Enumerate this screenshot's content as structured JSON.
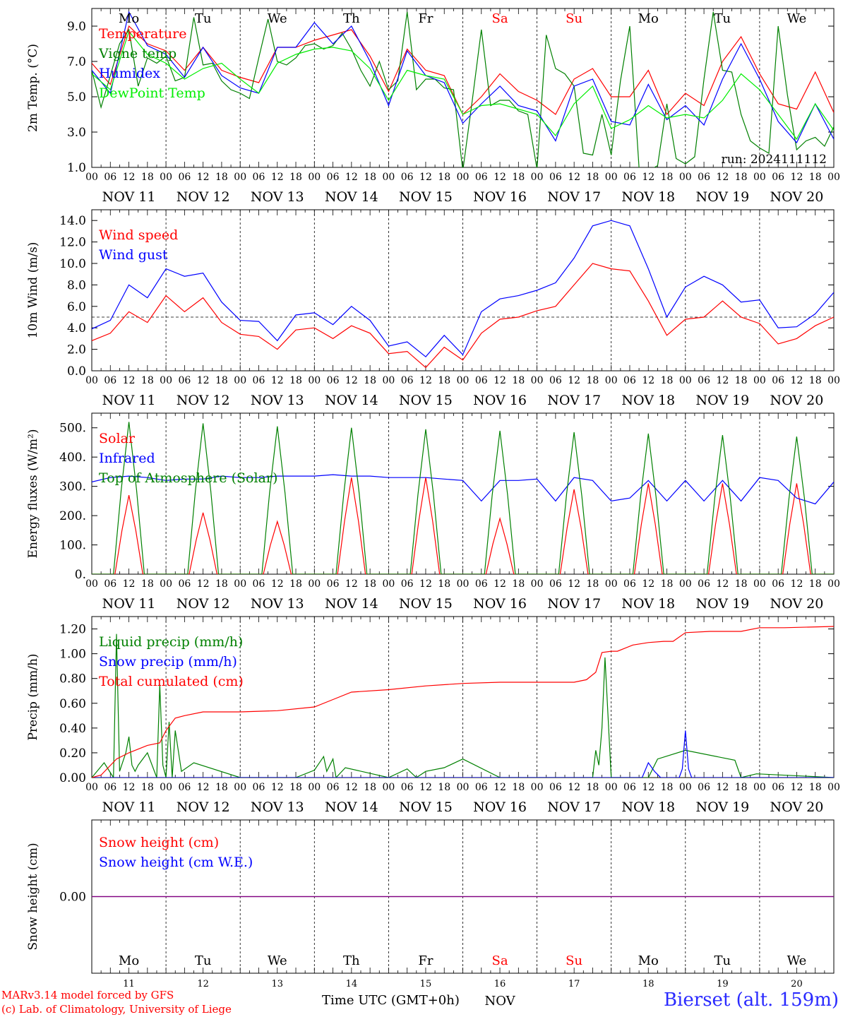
{
  "common": {
    "days": [
      "Mo",
      "Tu",
      "We",
      "Th",
      "Fr",
      "Sa",
      "Su",
      "Mo",
      "Tu",
      "We"
    ],
    "weekend": [
      false,
      false,
      false,
      false,
      false,
      true,
      true,
      false,
      false,
      false
    ],
    "date_labels": [
      "NOV 11",
      "NOV 12",
      "NOV 13",
      "NOV 14",
      "NOV 15",
      "NOV 16",
      "NOV 17",
      "NOV 18",
      "NOV 19",
      "NOV 20"
    ],
    "hour_labels": [
      "00",
      "06",
      "12",
      "18"
    ],
    "last_hour_label": "00",
    "bottom_day_numbers": [
      "11",
      "12",
      "13",
      "14",
      "15",
      "16",
      "17",
      "18",
      "19",
      "20"
    ],
    "bottom_month": "NOV",
    "hours_span": 240
  },
  "footer": {
    "model_line": "MARv3.14 model forced by GFS",
    "lab_line": "(c) Lab. of Climatology, University of Liege",
    "time_axis_label": "Time UTC (GMT+0h)",
    "station_label": "Bierset (alt. 159m)"
  },
  "colors": {
    "red": "#ff0000",
    "green": "#008000",
    "blue": "#0000ff",
    "lightgreen": "#00ee00",
    "purple": "#800080"
  },
  "chart_data": [
    {
      "type": "line",
      "ylabel": "2m Temp. (°C)",
      "ylim": [
        1.0,
        10.0
      ],
      "yticks": [
        1.0,
        3.0,
        5.0,
        7.0,
        9.0
      ],
      "tick_decimals": 1,
      "annotation": "run: 2024111112",
      "show_days": true,
      "grid": "dashed day separators",
      "legend_position": "left",
      "series": [
        {
          "name": "Temperature",
          "color": "red",
          "x": [
            0,
            6,
            12,
            18,
            24,
            30,
            36,
            42,
            48,
            54,
            60,
            66,
            72,
            78,
            84,
            90,
            96,
            102,
            108,
            114,
            120,
            126,
            132,
            138,
            144,
            150,
            156,
            162,
            168,
            174,
            180,
            186,
            192,
            198,
            204,
            210,
            216,
            222,
            228,
            234,
            240
          ],
          "y": [
            6.9,
            5.7,
            9.0,
            8.0,
            7.6,
            6.5,
            7.8,
            6.5,
            6.1,
            5.8,
            7.8,
            7.8,
            8.2,
            8.5,
            8.8,
            7.3,
            5.3,
            7.7,
            6.5,
            6.2,
            4.0,
            5.0,
            6.3,
            5.3,
            4.8,
            4.0,
            6.0,
            6.6,
            5.0,
            5.0,
            6.5,
            4.0,
            5.2,
            4.5,
            7.0,
            8.4,
            6.3,
            4.6,
            4.3,
            6.4,
            4.1
          ]
        },
        {
          "name": "Vigne temp",
          "color": "green",
          "x": [
            0,
            3,
            6,
            9,
            12,
            15,
            18,
            21,
            24,
            27,
            30,
            33,
            36,
            39,
            42,
            45,
            48,
            51,
            54,
            57,
            60,
            63,
            66,
            69,
            72,
            75,
            78,
            81,
            84,
            87,
            90,
            93,
            96,
            99,
            102,
            105,
            108,
            111,
            114,
            117,
            120,
            123,
            126,
            129,
            132,
            135,
            138,
            141,
            144,
            147,
            150,
            153,
            156,
            159,
            162,
            165,
            168,
            171,
            174,
            177,
            180,
            183,
            186,
            189,
            192,
            195,
            198,
            201,
            204,
            207,
            210,
            213,
            216,
            219,
            222,
            225,
            228,
            231,
            234,
            237,
            240
          ],
          "y": [
            6.5,
            4.4,
            6.2,
            8.0,
            8.8,
            5.6,
            7.2,
            6.9,
            7.3,
            5.9,
            6.1,
            9.5,
            6.8,
            6.9,
            5.9,
            5.4,
            5.2,
            4.9,
            7.2,
            9.4,
            7.0,
            6.8,
            7.2,
            7.9,
            8.0,
            7.7,
            7.9,
            8.6,
            7.7,
            6.5,
            5.6,
            7.0,
            5.4,
            5.9,
            9.8,
            5.4,
            6.0,
            6.0,
            5.5,
            5.4,
            0.8,
            4.7,
            8.8,
            4.5,
            4.8,
            4.8,
            4.2,
            4.0,
            0.9,
            8.5,
            6.6,
            6.3,
            5.6,
            1.8,
            1.7,
            4.0,
            1.7,
            5.9,
            9.0,
            1.0,
            0.8,
            1.1,
            4.6,
            1.5,
            1.2,
            1.6,
            6.0,
            9.8,
            6.5,
            6.4,
            4.0,
            2.5,
            2.1,
            1.8,
            9.0,
            5.1,
            2.0,
            2.5,
            2.7,
            2.2,
            3.3
          ]
        },
        {
          "name": "Humidex",
          "color": "blue",
          "x": [
            0,
            6,
            12,
            18,
            24,
            30,
            36,
            42,
            48,
            54,
            60,
            66,
            72,
            78,
            84,
            90,
            96,
            102,
            108,
            114,
            120,
            126,
            132,
            138,
            144,
            150,
            156,
            162,
            168,
            174,
            180,
            186,
            192,
            198,
            204,
            210,
            216,
            222,
            228,
            234,
            240
          ],
          "y": [
            6.5,
            5.2,
            9.8,
            7.9,
            7.4,
            6.1,
            7.8,
            6.2,
            5.5,
            5.2,
            7.8,
            7.8,
            9.2,
            8.0,
            9.0,
            7.0,
            4.5,
            7.6,
            6.2,
            5.8,
            3.5,
            4.6,
            5.6,
            4.5,
            4.2,
            2.5,
            5.6,
            6.0,
            3.6,
            3.4,
            5.7,
            3.7,
            4.5,
            3.4,
            6.0,
            8.0,
            6.0,
            3.6,
            2.4,
            4.6,
            2.6
          ]
        },
        {
          "name": "DewPoint Temp",
          "color": "lightgreen",
          "x": [
            0,
            6,
            12,
            18,
            24,
            30,
            36,
            42,
            48,
            54,
            60,
            66,
            72,
            78,
            84,
            90,
            96,
            102,
            108,
            114,
            120,
            126,
            132,
            138,
            144,
            150,
            156,
            162,
            168,
            174,
            180,
            186,
            192,
            198,
            204,
            210,
            216,
            222,
            228,
            234,
            240
          ],
          "y": [
            6.3,
            5.4,
            8.7,
            7.4,
            6.9,
            6.0,
            6.6,
            6.9,
            6.0,
            5.2,
            6.9,
            7.4,
            7.7,
            7.8,
            7.6,
            6.6,
            4.8,
            6.5,
            6.2,
            6.0,
            4.0,
            4.5,
            4.6,
            4.3,
            4.0,
            2.8,
            4.6,
            5.6,
            3.2,
            3.7,
            4.5,
            3.8,
            4.0,
            3.8,
            4.8,
            6.3,
            5.4,
            4.0,
            2.6,
            4.6,
            3.1
          ]
        }
      ]
    },
    {
      "type": "line",
      "ylabel": "10m Wind (m/s)",
      "ylim": [
        0.0,
        15.0
      ],
      "yticks": [
        0.0,
        2.0,
        4.0,
        6.0,
        8.0,
        10.0,
        12.0,
        14.0
      ],
      "tick_decimals": 1,
      "reference_line": 5.0,
      "show_days": false,
      "legend_position": "left",
      "series": [
        {
          "name": "Wind speed",
          "color": "red",
          "x": [
            0,
            6,
            12,
            18,
            24,
            30,
            36,
            42,
            48,
            54,
            60,
            66,
            72,
            78,
            84,
            90,
            96,
            102,
            108,
            114,
            120,
            126,
            132,
            138,
            144,
            150,
            156,
            162,
            168,
            174,
            180,
            186,
            192,
            198,
            204,
            210,
            216,
            222,
            228,
            234,
            240
          ],
          "y": [
            2.8,
            3.5,
            5.5,
            4.5,
            7.0,
            5.5,
            6.8,
            4.5,
            3.4,
            3.2,
            2.0,
            3.8,
            4.0,
            3.0,
            4.2,
            3.5,
            1.6,
            1.8,
            0.3,
            2.2,
            1.0,
            3.5,
            4.8,
            5.0,
            5.6,
            6.0,
            8.0,
            10.0,
            9.5,
            9.3,
            6.5,
            3.3,
            4.8,
            5.0,
            6.5,
            5.0,
            4.4,
            2.5,
            3.0,
            4.2,
            5.0
          ]
        },
        {
          "name": "Wind gust",
          "color": "blue",
          "x": [
            0,
            6,
            12,
            18,
            24,
            30,
            36,
            42,
            48,
            54,
            60,
            66,
            72,
            78,
            84,
            90,
            96,
            102,
            108,
            114,
            120,
            126,
            132,
            138,
            144,
            150,
            156,
            162,
            168,
            174,
            180,
            186,
            192,
            198,
            204,
            210,
            216,
            222,
            228,
            234,
            240
          ],
          "y": [
            3.9,
            4.7,
            8.0,
            6.8,
            9.5,
            8.8,
            9.1,
            6.4,
            4.7,
            4.6,
            2.8,
            5.2,
            5.4,
            4.3,
            6.0,
            4.7,
            2.3,
            2.7,
            1.3,
            3.3,
            1.5,
            5.5,
            6.7,
            7.0,
            7.5,
            8.2,
            10.5,
            13.5,
            14.0,
            13.5,
            9.5,
            5.0,
            7.8,
            8.8,
            8.0,
            6.4,
            6.6,
            4.0,
            4.1,
            5.3,
            7.3
          ]
        }
      ]
    },
    {
      "type": "line",
      "ylabel": "Energy fluxes (W/m²)",
      "ylim": [
        0,
        550
      ],
      "yticks": [
        0,
        100,
        200,
        300,
        400,
        500
      ],
      "tick_decimals": 0,
      "show_days": false,
      "legend_position": "left",
      "series": [
        {
          "name": "Solar",
          "color": "red",
          "kind": "daily_peaks",
          "peaks": [
            270,
            210,
            180,
            330,
            330,
            190,
            290,
            310,
            310,
            310
          ],
          "half_width": 4.5
        },
        {
          "name": "Infrared",
          "color": "blue",
          "x": [
            0,
            6,
            12,
            18,
            24,
            30,
            36,
            42,
            48,
            54,
            60,
            66,
            72,
            78,
            84,
            90,
            96,
            102,
            108,
            114,
            120,
            126,
            132,
            138,
            144,
            150,
            156,
            162,
            168,
            174,
            180,
            186,
            192,
            198,
            204,
            210,
            216,
            222,
            228,
            234,
            240
          ],
          "y": [
            315,
            330,
            335,
            330,
            320,
            325,
            325,
            335,
            330,
            330,
            335,
            335,
            335,
            340,
            335,
            335,
            330,
            330,
            330,
            325,
            320,
            250,
            320,
            320,
            325,
            250,
            330,
            320,
            250,
            260,
            320,
            250,
            320,
            250,
            320,
            250,
            330,
            320,
            260,
            240,
            315
          ]
        },
        {
          "name": "Top of Atmosphere (Solar)",
          "color": "green",
          "kind": "daily_peaks",
          "peaks": [
            520,
            515,
            505,
            500,
            495,
            490,
            485,
            480,
            475,
            470
          ],
          "half_width": 5.0
        }
      ]
    },
    {
      "type": "line",
      "ylabel": "Precip (mm/h)",
      "ylim": [
        0.0,
        1.3
      ],
      "yticks": [
        0.0,
        0.2,
        0.4,
        0.6,
        0.8,
        1.0,
        1.2
      ],
      "tick_decimals": 2,
      "show_days": false,
      "legend_position": "left",
      "series": [
        {
          "name": "Liquid precip (mm/h)",
          "color": "green",
          "x": [
            0,
            4,
            7,
            8,
            9,
            11,
            12,
            13,
            14,
            15,
            18,
            21,
            22,
            23,
            24,
            25,
            26,
            27,
            29,
            33,
            48,
            66,
            72,
            75,
            76,
            78,
            79,
            82,
            96,
            102,
            105,
            108,
            114,
            120,
            132,
            162,
            163,
            164,
            165,
            166,
            168,
            180,
            183,
            192,
            208,
            210,
            215,
            240
          ],
          "y": [
            0.0,
            0.12,
            0.0,
            1.16,
            0.05,
            0.2,
            0.33,
            0.1,
            0.05,
            0.1,
            0.2,
            0.0,
            0.75,
            0.1,
            0.0,
            0.45,
            0.0,
            0.38,
            0.05,
            0.12,
            0.0,
            0.0,
            0.06,
            0.17,
            0.05,
            0.15,
            0.0,
            0.08,
            0.0,
            0.07,
            0.0,
            0.05,
            0.08,
            0.15,
            0.0,
            0.0,
            0.22,
            0.1,
            0.4,
            0.97,
            0.0,
            0.0,
            0.15,
            0.22,
            0.14,
            0.0,
            0.03,
            0.0
          ]
        },
        {
          "name": "Snow precip (mm/h)",
          "color": "blue",
          "x": [
            0,
            178,
            180,
            182,
            184,
            190,
            191,
            192,
            193,
            194,
            240
          ],
          "y": [
            0,
            0,
            0.12,
            0.05,
            0.0,
            0.0,
            0.07,
            0.38,
            0.07,
            0.0,
            0
          ]
        },
        {
          "name": "Total cumulated (cm)",
          "color": "red",
          "x": [
            0,
            3,
            8,
            12,
            18,
            22,
            24,
            27,
            30,
            36,
            48,
            60,
            72,
            78,
            84,
            96,
            108,
            120,
            132,
            144,
            150,
            156,
            160,
            163,
            165,
            168,
            170,
            175,
            180,
            185,
            188,
            192,
            200,
            210,
            216,
            224,
            240
          ],
          "y": [
            0.0,
            0.02,
            0.15,
            0.2,
            0.26,
            0.28,
            0.38,
            0.48,
            0.5,
            0.53,
            0.53,
            0.54,
            0.57,
            0.63,
            0.69,
            0.71,
            0.74,
            0.76,
            0.77,
            0.77,
            0.77,
            0.77,
            0.79,
            0.85,
            1.01,
            1.02,
            1.02,
            1.07,
            1.09,
            1.1,
            1.1,
            1.17,
            1.18,
            1.18,
            1.21,
            1.21,
            1.22
          ]
        }
      ]
    },
    {
      "type": "line",
      "ylabel": "Snow height (cm)",
      "ylim": [
        -1.0,
        1.0
      ],
      "yticks": [
        0.0
      ],
      "tick_decimals": 2,
      "show_days": true,
      "days_position": "bottom",
      "legend_position": "left",
      "series": [
        {
          "name": "Snow height (cm)",
          "color": "red",
          "x": [
            0,
            240
          ],
          "y": [
            0,
            0
          ]
        },
        {
          "name": "Snow height (cm W.E.)",
          "color": "blue",
          "x": [
            0,
            240
          ],
          "y": [
            0,
            0
          ]
        }
      ]
    }
  ]
}
